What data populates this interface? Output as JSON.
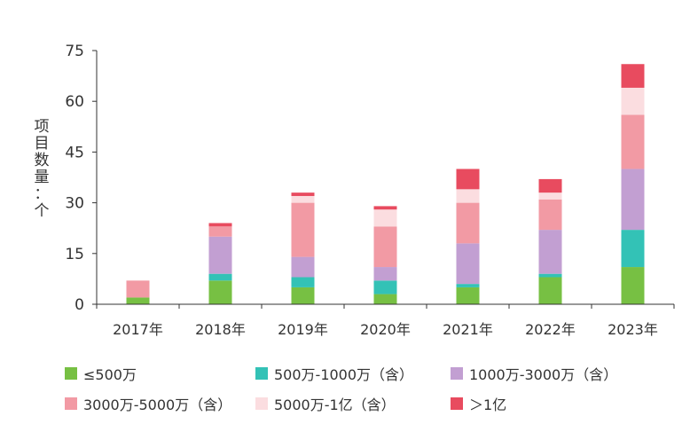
{
  "chart_data": {
    "type": "bar",
    "stacked": true,
    "ylabel": "项目数量：个",
    "ylim": [
      0,
      75
    ],
    "yticks": [
      0,
      15,
      30,
      45,
      60,
      75
    ],
    "grid": false,
    "legend_position": "bottom",
    "categories": [
      "2017年",
      "2018年",
      "2019年",
      "2020年",
      "2021年",
      "2022年",
      "2023年"
    ],
    "series": [
      {
        "name": "≤500万",
        "color": "#77c043",
        "values": [
          2,
          7,
          5,
          3,
          5,
          8,
          11
        ]
      },
      {
        "name": "500万-1000万（含）",
        "color": "#33c2b6",
        "values": [
          0,
          2,
          3,
          4,
          1,
          1,
          11
        ]
      },
      {
        "name": "1000万-3000万（含）",
        "color": "#c29fd2",
        "values": [
          0,
          11,
          6,
          4,
          12,
          13,
          18
        ]
      },
      {
        "name": "3000万-5000万（含）",
        "color": "#f29aa4",
        "values": [
          5,
          3,
          16,
          12,
          12,
          9,
          16
        ]
      },
      {
        "name": "5000万-1亿（含）",
        "color": "#fbdde0",
        "values": [
          0,
          0,
          2,
          5,
          4,
          2,
          8
        ]
      },
      {
        "name": "＞1亿",
        "color": "#e84b5f",
        "values": [
          0,
          1,
          1,
          1,
          6,
          4,
          7
        ]
      }
    ]
  }
}
